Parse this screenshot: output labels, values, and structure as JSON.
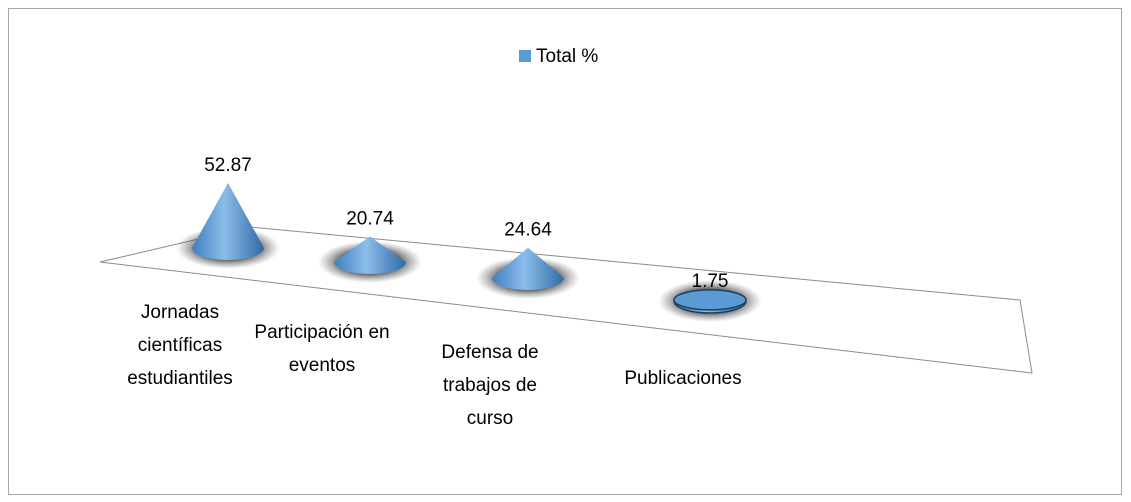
{
  "chart_data": {
    "type": "cone",
    "categories": [
      "Jornadas científicas estudiantiles",
      "Participación en eventos",
      "Defensa de trabajos de curso",
      "Publicaciones"
    ],
    "series": [
      {
        "name": "Total %",
        "color": "#5b9bd5",
        "values": [
          52.87,
          20.74,
          24.64,
          1.75
        ]
      }
    ]
  }
}
